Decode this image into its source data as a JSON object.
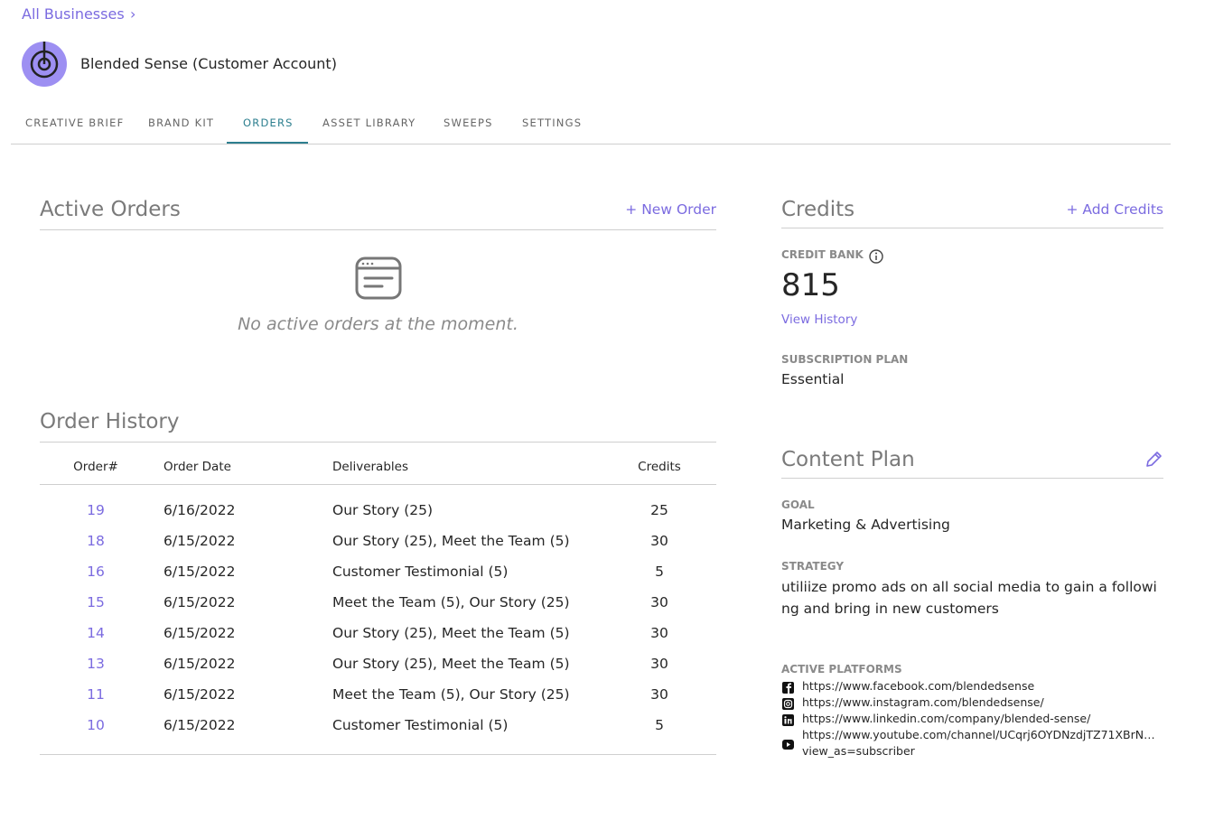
{
  "breadcrumb": {
    "link": "All Businesses",
    "separator": "›"
  },
  "business": {
    "name": "Blended Sense (Customer Account)"
  },
  "tabs": [
    {
      "label": "CREATIVE BRIEF",
      "active": false
    },
    {
      "label": "BRAND KIT",
      "active": false
    },
    {
      "label": "ORDERS",
      "active": true
    },
    {
      "label": "ASSET LIBRARY",
      "active": false
    },
    {
      "label": "SWEEPS",
      "active": false
    },
    {
      "label": "SETTINGS",
      "active": false
    }
  ],
  "active_orders": {
    "title": "Active Orders",
    "action": "+ New Order",
    "empty": "No active orders at the moment."
  },
  "order_history": {
    "title": "Order History",
    "columns": [
      "Order#",
      "Order Date",
      "Deliverables",
      "Credits"
    ],
    "rows": [
      [
        19,
        "6/16/2022",
        "Our Story (25)",
        25
      ],
      [
        18,
        "6/15/2022",
        "Our Story (25), Meet the Team (5)",
        30
      ],
      [
        16,
        "6/15/2022",
        "Customer Testimonial (5)",
        5
      ],
      [
        15,
        "6/15/2022",
        "Meet the Team (5), Our Story (25)",
        30
      ],
      [
        14,
        "6/15/2022",
        "Our Story (25), Meet the Team (5)",
        30
      ],
      [
        13,
        "6/15/2022",
        "Our Story (25), Meet the Team (5)",
        30
      ],
      [
        11,
        "6/15/2022",
        "Meet the Team (5), Our Story (25)",
        30
      ],
      [
        10,
        "6/15/2022",
        "Customer Testimonial (5)",
        5
      ]
    ]
  },
  "credits": {
    "title": "Credits",
    "action": "+ Add Credits",
    "bank_label": "CREDIT BANK",
    "bank_value": 815,
    "history_link": "View History",
    "plan_label": "SUBSCRIPTION PLAN",
    "plan_value": "Essential"
  },
  "content_plan": {
    "title": "Content Plan",
    "goal_label": "GOAL",
    "goal_value": "Marketing & Advertising",
    "strategy_label": "STRATEGY",
    "strategy_value": "utiliize promo ads on all social media to gain a following and bring in new customers",
    "platforms_label": "ACTIVE PLATFORMS",
    "platforms": [
      "https://www.facebook.com/blendedsense",
      "https://www.instagram.com/blendedsense/",
      "https://www.linkedin.com/company/blended-sense/",
      "https://www.youtube.com/channel/UCqrj6OYDNzdjTZ71XBrN…",
      "view_as=subscriber"
    ]
  }
}
